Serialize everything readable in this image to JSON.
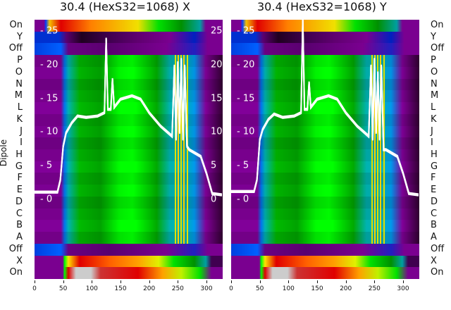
{
  "chart_data": [
    {
      "type": "heatmap",
      "title": "30.4 (HexS32=1068) X",
      "ylabel": "Dipole",
      "row_labels": [
        "On",
        "Y",
        "Off",
        "P",
        "O",
        "N",
        "M",
        "L",
        "K",
        "J",
        "I",
        "H",
        "G",
        "F",
        "E",
        "D",
        "C",
        "B",
        "A",
        "Off",
        "X",
        "On"
      ],
      "xlim": [
        0,
        327
      ],
      "xticks": [
        0,
        50,
        100,
        150,
        200,
        250,
        300
      ],
      "inset_yticks": [
        0,
        5,
        10,
        15,
        20,
        25
      ],
      "inset_ylim": [
        -5.5,
        26.5
      ],
      "line_series": {
        "x": [
          0,
          40,
          45,
          50,
          55,
          65,
          75,
          90,
          110,
          122,
          125,
          128,
          133,
          136,
          139,
          150,
          170,
          185,
          200,
          220,
          240,
          244,
          247,
          250,
          253,
          256,
          259,
          262,
          266,
          270,
          290,
          300,
          310,
          327
        ],
        "y": [
          1.2,
          1.2,
          3,
          8,
          10,
          11.5,
          12.5,
          12.3,
          12.5,
          13,
          24,
          13.5,
          13.5,
          18,
          13.8,
          15,
          15.5,
          15,
          13,
          11,
          9.5,
          20,
          9,
          20.5,
          10,
          21,
          9,
          20,
          8,
          7.5,
          6.5,
          4,
          1,
          0.8
        ]
      }
    },
    {
      "type": "heatmap",
      "title": "30.4 (HexS32=1068) Y",
      "row_labels": [
        "On",
        "Y",
        "Off",
        "P",
        "O",
        "N",
        "M",
        "L",
        "K",
        "J",
        "I",
        "H",
        "G",
        "F",
        "E",
        "D",
        "C",
        "B",
        "A",
        "Off",
        "X",
        "On"
      ],
      "xlim": [
        0,
        327
      ],
      "xticks": [
        0,
        50,
        100,
        150,
        200,
        250,
        300
      ],
      "inset_yticks": [
        0,
        5,
        10,
        15,
        20,
        25
      ],
      "inset_ylim": [
        -5.5,
        26.5
      ],
      "line_series": {
        "x": [
          0,
          40,
          45,
          50,
          55,
          65,
          75,
          90,
          110,
          122,
          125,
          128,
          133,
          136,
          139,
          150,
          170,
          185,
          200,
          220,
          240,
          244,
          247,
          250,
          253,
          256,
          259,
          262,
          266,
          270,
          290,
          300,
          310,
          327
        ],
        "y": [
          1.3,
          1.3,
          3,
          9,
          10.5,
          12,
          12.8,
          12.3,
          12.5,
          13,
          27,
          13.5,
          13.5,
          17.5,
          13.8,
          15,
          15.5,
          15,
          13,
          11,
          9.5,
          20,
          9,
          21,
          10,
          19,
          9,
          20,
          7.5,
          7.5,
          6.5,
          4,
          1,
          0.8
        ]
      }
    }
  ],
  "colors": {
    "line": "#ffffff",
    "bg": "#7a0090"
  }
}
